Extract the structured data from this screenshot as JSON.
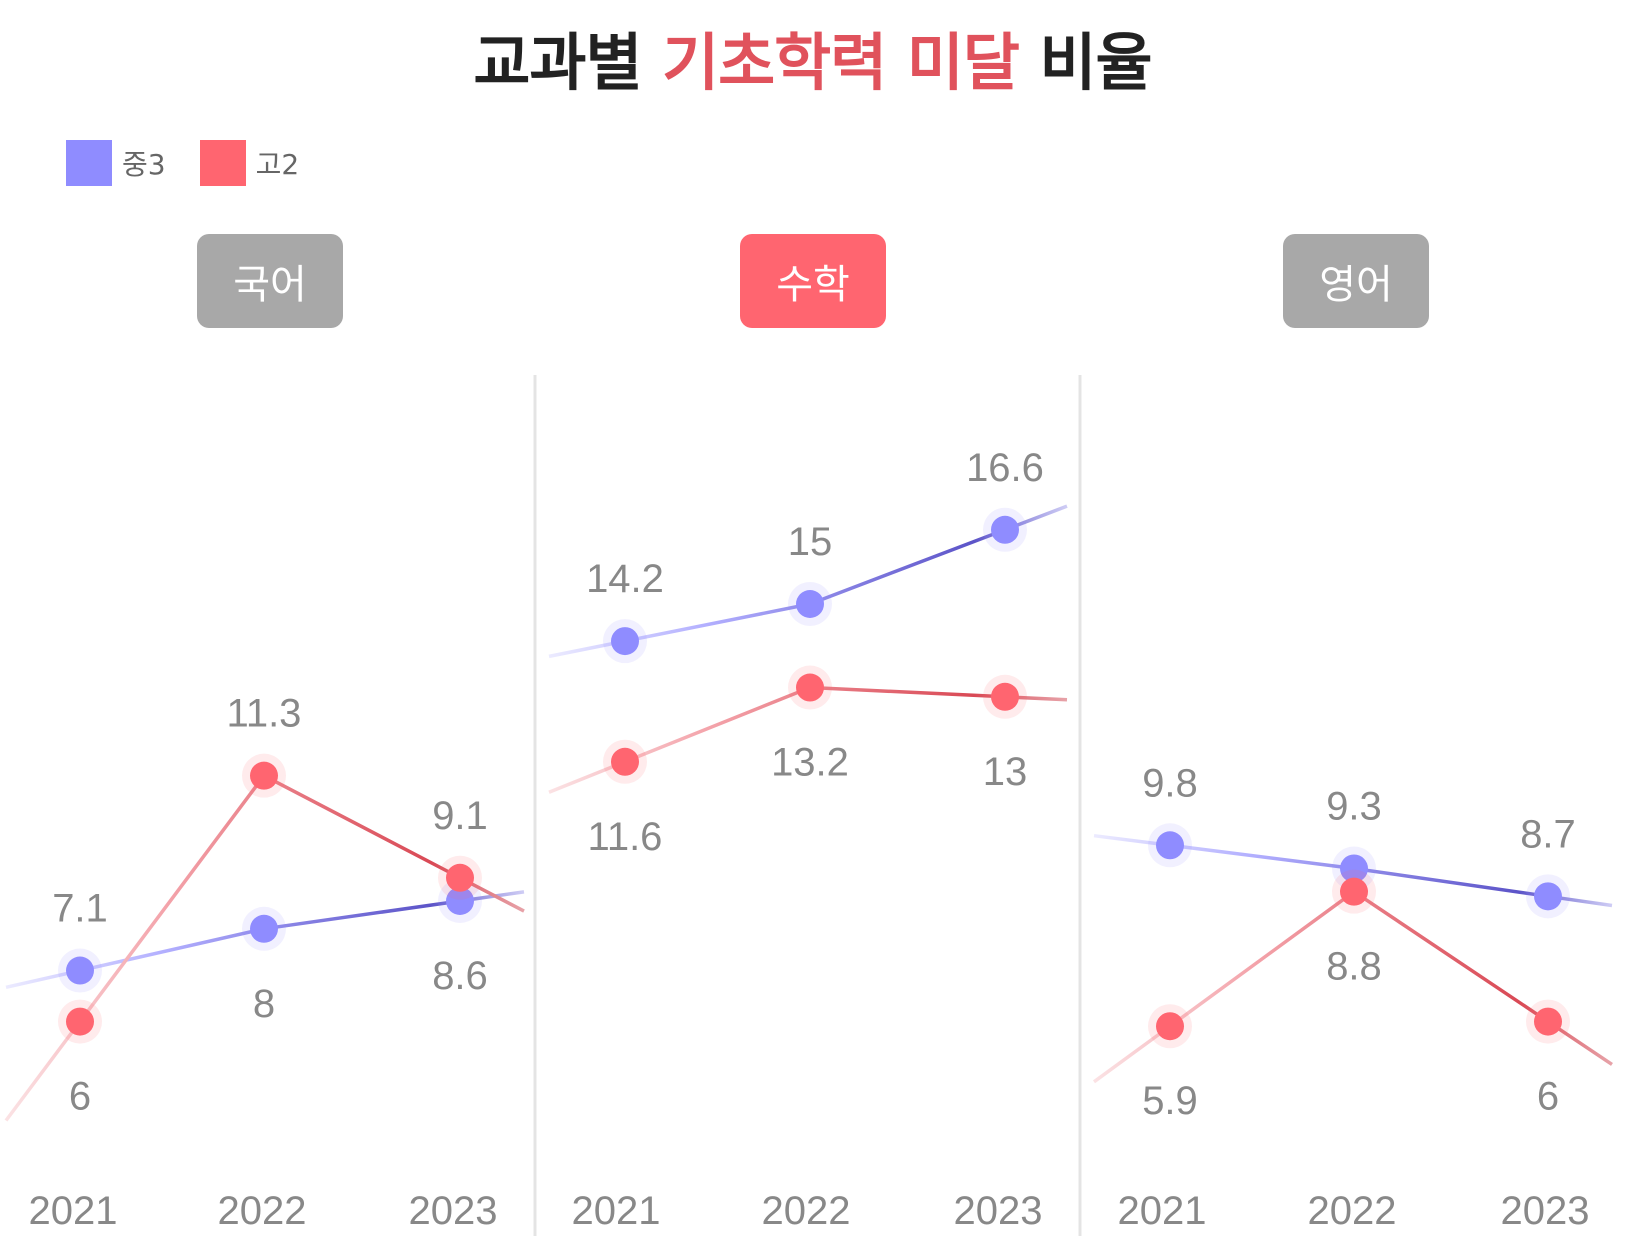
{
  "title": {
    "prefix": "교과별",
    "highlight": "기초학력 미달",
    "suffix": "비율"
  },
  "colors": {
    "title_text": "#222222",
    "title_highlight": "#E0525C",
    "middle_school": "#8F8CFF",
    "high_school": "#FF6570",
    "tab_inactive": "#A8A8A8",
    "tab_active": "#FF6570",
    "label_text": "#888888",
    "divider": "#E4E4E4"
  },
  "legend": [
    {
      "label": "중3",
      "color": "#8F8CFF"
    },
    {
      "label": "고2",
      "color": "#FF6570"
    }
  ],
  "chart_data": [
    {
      "type": "line",
      "title": "국어",
      "highlighted": false,
      "categories": [
        "2021",
        "2022",
        "2023"
      ],
      "series": [
        {
          "name": "중3",
          "values": [
            7.1,
            8,
            8.6
          ]
        },
        {
          "name": "고2",
          "values": [
            6,
            11.3,
            9.1
          ]
        }
      ]
    },
    {
      "type": "line",
      "title": "수학",
      "highlighted": true,
      "categories": [
        "2021",
        "2022",
        "2023"
      ],
      "series": [
        {
          "name": "중3",
          "values": [
            14.2,
            15,
            16.6
          ]
        },
        {
          "name": "고2",
          "values": [
            11.6,
            13.2,
            13
          ]
        }
      ]
    },
    {
      "type": "line",
      "title": "영어",
      "highlighted": false,
      "categories": [
        "2021",
        "2022",
        "2023"
      ],
      "series": [
        {
          "name": "중3",
          "values": [
            9.8,
            9.3,
            8.7
          ]
        },
        {
          "name": "고2",
          "values": [
            5.9,
            8.8,
            6
          ]
        }
      ]
    }
  ]
}
